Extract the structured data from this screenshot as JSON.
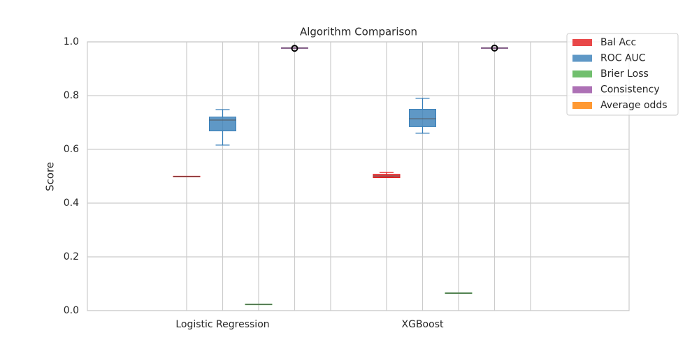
{
  "chart_data": {
    "type": "box",
    "title": "Algorithm Comparison",
    "y_label": "Score",
    "categories": [
      "Logistic Regression",
      "XGBoost"
    ],
    "ylim": [
      0,
      1
    ],
    "yticks": [
      {
        "value": 0,
        "label": "0.0"
      },
      0.2,
      0.4,
      0.6,
      0.8,
      {
        "value": 1,
        "label": "1.0"
      }
    ],
    "grid": true,
    "legend": "upper right",
    "series": [
      {
        "name": "Bal Acc",
        "color": "#e41a1c",
        "boxes": [
          {
            "low": 0.499,
            "q1": 0.499,
            "median": 0.499,
            "q3": 0.499,
            "high": 0.499,
            "fliers": []
          },
          {
            "low": 0.496,
            "q1": 0.496,
            "median": 0.501,
            "q3": 0.506,
            "high": 0.514,
            "fliers": []
          }
        ]
      },
      {
        "name": "ROC AUC",
        "color": "#377eb8",
        "boxes": [
          {
            "low": 0.616,
            "q1": 0.67,
            "median": 0.709,
            "q3": 0.719,
            "high": 0.748,
            "fliers": []
          },
          {
            "low": 0.66,
            "q1": 0.686,
            "median": 0.714,
            "q3": 0.748,
            "high": 0.79,
            "fliers": []
          }
        ]
      },
      {
        "name": "Brier Loss",
        "color": "#4daf4a",
        "boxes": [
          {
            "low": 0.023,
            "q1": 0.023,
            "median": 0.023,
            "q3": 0.023,
            "high": 0.023,
            "fliers": []
          },
          {
            "low": 0.065,
            "q1": 0.065,
            "median": 0.065,
            "q3": 0.065,
            "high": 0.065,
            "fliers": []
          }
        ]
      },
      {
        "name": "Consistency",
        "color": "#984ea3",
        "boxes": [
          {
            "low": 0.977,
            "q1": 0.977,
            "median": 0.977,
            "q3": 0.977,
            "high": 0.977,
            "fliers": [
              0.976
            ]
          },
          {
            "low": 0.977,
            "q1": 0.977,
            "median": 0.977,
            "q3": 0.977,
            "high": 0.977,
            "fliers": [
              0.977
            ]
          }
        ]
      },
      {
        "name": "Average odds",
        "color": "#ff7f00",
        "boxes": [
          null,
          null
        ]
      }
    ]
  }
}
